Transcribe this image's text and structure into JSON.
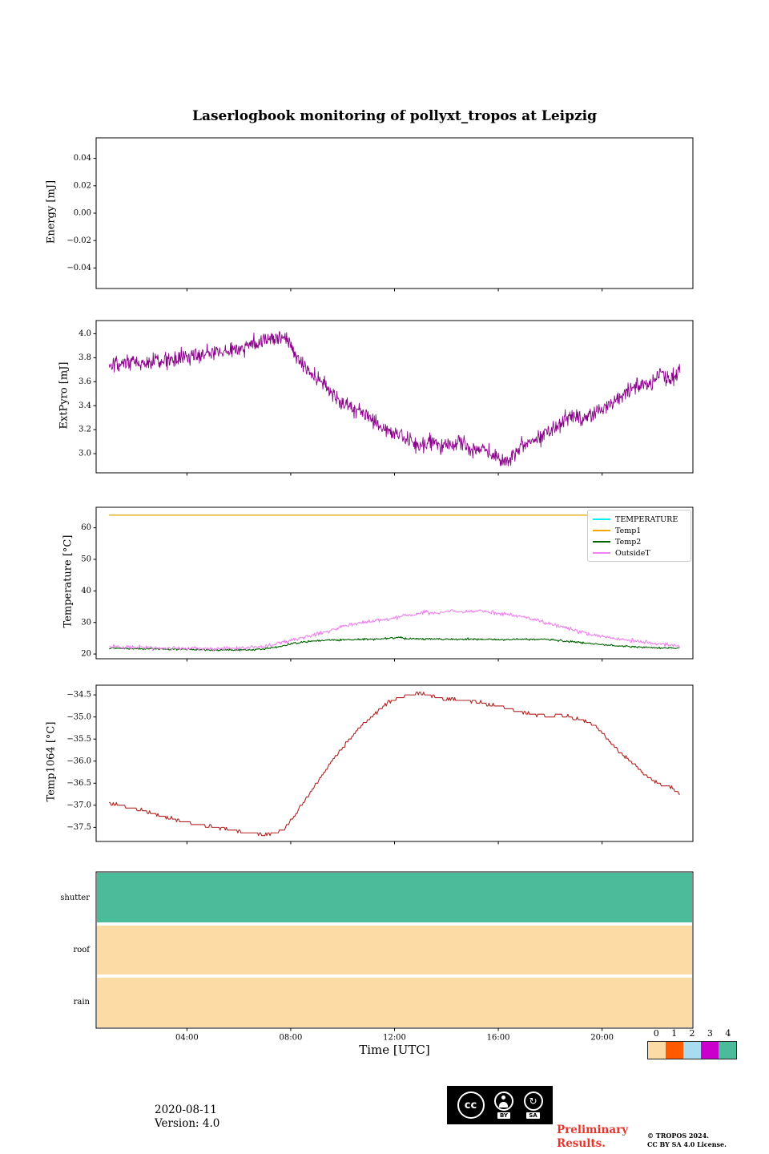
{
  "title": "Laserlogbook monitoring of pollyxt_tropos at Leipzig",
  "xlabel": "Time [UTC]",
  "footer": {
    "date": "2020-08-11",
    "version": "Version: 4.0",
    "preliminary_line1": "Preliminary",
    "preliminary_line2": "Results.",
    "copyright_line1": "© TROPOS 2024.",
    "copyright_line2": "CC BY SA 4.0 License.",
    "cc_text": "cc",
    "cc_label_by": "BY",
    "cc_label_sa": "SA",
    "cc_sa_glyph": "↻"
  },
  "colorbar": {
    "labels": [
      "0",
      "1",
      "2",
      "3",
      "4"
    ],
    "colors": [
      "#FCDCA4",
      "#FF5A00",
      "#A8DCF0",
      "#CC00CC",
      "#4CBB9A"
    ]
  },
  "chart_data": [
    {
      "id": "energy",
      "type": "line",
      "ylabel": "Energy [mJ]",
      "ylim": [
        -0.055,
        0.055
      ],
      "xlim": [
        0.5,
        23.5
      ],
      "yticks": [
        {
          "v": 0.04,
          "label": "0.04"
        },
        {
          "v": 0.02,
          "label": "0.02"
        },
        {
          "v": 0.0,
          "label": "0.00"
        },
        {
          "v": -0.02,
          "label": "−0.02"
        },
        {
          "v": -0.04,
          "label": "−0.04"
        }
      ],
      "xticks": [
        {
          "v": 4,
          "label": "04:00"
        },
        {
          "v": 8,
          "label": "08:00"
        },
        {
          "v": 12,
          "label": "12:00"
        },
        {
          "v": 16,
          "label": "16:00"
        },
        {
          "v": 20,
          "label": "20:00"
        }
      ],
      "show_xlabels": false,
      "series": []
    },
    {
      "id": "extpyro",
      "type": "line",
      "ylabel": "ExtPyro [mJ]",
      "ylim": [
        2.84,
        4.11
      ],
      "xlim": [
        0.5,
        23.5
      ],
      "yticks": [
        {
          "v": 4.0,
          "label": "4.0"
        },
        {
          "v": 3.8,
          "label": "3.8"
        },
        {
          "v": 3.6,
          "label": "3.6"
        },
        {
          "v": 3.4,
          "label": "3.4"
        },
        {
          "v": 3.2,
          "label": "3.2"
        },
        {
          "v": 3.0,
          "label": "3.0"
        }
      ],
      "xticks": [
        {
          "v": 4,
          "label": "04:00"
        },
        {
          "v": 8,
          "label": "08:00"
        },
        {
          "v": 12,
          "label": "12:00"
        },
        {
          "v": 16,
          "label": "16:00"
        },
        {
          "v": 20,
          "label": "20:00"
        }
      ],
      "show_xlabels": false,
      "series": [
        {
          "name": "ExtPyro",
          "color": "#8B008B",
          "width": 0.9,
          "noise": 0.07,
          "sample_step": 0.02,
          "anchors": [
            [
              1,
              3.72
            ],
            [
              1.5,
              3.74
            ],
            [
              2,
              3.76
            ],
            [
              2.5,
              3.75
            ],
            [
              3,
              3.78
            ],
            [
              3.5,
              3.78
            ],
            [
              4,
              3.81
            ],
            [
              4.5,
              3.82
            ],
            [
              5,
              3.84
            ],
            [
              5.5,
              3.86
            ],
            [
              6,
              3.87
            ],
            [
              6.3,
              3.9
            ],
            [
              6.7,
              3.93
            ],
            [
              7,
              3.95
            ],
            [
              7.3,
              3.96
            ],
            [
              7.6,
              3.97
            ],
            [
              7.9,
              3.93
            ],
            [
              8.2,
              3.82
            ],
            [
              8.6,
              3.72
            ],
            [
              9,
              3.62
            ],
            [
              9.5,
              3.53
            ],
            [
              10,
              3.42
            ],
            [
              10.5,
              3.37
            ],
            [
              11,
              3.3
            ],
            [
              11.5,
              3.22
            ],
            [
              12,
              3.17
            ],
            [
              12.5,
              3.1
            ],
            [
              13,
              3.06
            ],
            [
              13.5,
              3.1
            ],
            [
              14,
              3.07
            ],
            [
              14.5,
              3.09
            ],
            [
              15,
              3.04
            ],
            [
              15.5,
              3.03
            ],
            [
              16,
              2.97
            ],
            [
              16.3,
              2.93
            ],
            [
              16.6,
              3.02
            ],
            [
              17,
              3.08
            ],
            [
              17.5,
              3.12
            ],
            [
              18,
              3.2
            ],
            [
              18.5,
              3.28
            ],
            [
              19,
              3.33
            ],
            [
              19.3,
              3.28
            ],
            [
              19.6,
              3.32
            ],
            [
              20,
              3.38
            ],
            [
              20.5,
              3.45
            ],
            [
              21,
              3.52
            ],
            [
              21.5,
              3.58
            ],
            [
              22,
              3.6
            ],
            [
              22.3,
              3.68
            ],
            [
              22.6,
              3.62
            ],
            [
              23,
              3.68
            ]
          ]
        }
      ]
    },
    {
      "id": "temperature",
      "type": "line",
      "ylabel": "Temperature [°C]",
      "ylim": [
        18.5,
        66.5
      ],
      "xlim": [
        0.5,
        23.5
      ],
      "yticks": [
        {
          "v": 60,
          "label": "60"
        },
        {
          "v": 50,
          "label": "50"
        },
        {
          "v": 40,
          "label": "40"
        },
        {
          "v": 30,
          "label": "30"
        },
        {
          "v": 20,
          "label": "20"
        }
      ],
      "xticks": [
        {
          "v": 4,
          "label": "04:00"
        },
        {
          "v": 8,
          "label": "08:00"
        },
        {
          "v": 12,
          "label": "12:00"
        },
        {
          "v": 16,
          "label": "16:00"
        },
        {
          "v": 20,
          "label": "20:00"
        }
      ],
      "show_xlabels": false,
      "legend": [
        {
          "label": "TEMPERATURE",
          "color": "#00EEEE"
        },
        {
          "label": "Temp1",
          "color": "#FFA500"
        },
        {
          "label": "Temp2",
          "color": "#006400"
        },
        {
          "label": "OutsideT",
          "color": "#EE82EE"
        }
      ],
      "series": [
        {
          "name": "TEMPERATURE",
          "color": "#00EEEE",
          "width": 1.2,
          "sample_step": 2,
          "anchors": [
            [
              1,
              64
            ],
            [
              23,
              64
            ]
          ]
        },
        {
          "name": "Temp1",
          "color": "#FFA500",
          "width": 1.2,
          "sample_step": 2,
          "anchors": [
            [
              1,
              64
            ],
            [
              23,
              64
            ]
          ]
        },
        {
          "name": "Temp2",
          "color": "#006400",
          "width": 1.1,
          "noise": 0.3,
          "sample_step": 0.03,
          "anchors": [
            [
              1,
              21.8
            ],
            [
              3,
              21.6
            ],
            [
              5,
              21.3
            ],
            [
              6.5,
              21.3
            ],
            [
              7,
              21.6
            ],
            [
              7.5,
              22.3
            ],
            [
              8,
              23.2
            ],
            [
              8.5,
              23.8
            ],
            [
              9,
              24.2
            ],
            [
              9.5,
              24.4
            ],
            [
              10,
              24.5
            ],
            [
              10.5,
              24.6
            ],
            [
              11,
              24.7
            ],
            [
              11.5,
              24.8
            ],
            [
              12,
              25.0
            ],
            [
              12.2,
              25.4
            ],
            [
              12.4,
              24.9
            ],
            [
              13,
              24.8
            ],
            [
              14,
              24.7
            ],
            [
              15,
              24.7
            ],
            [
              16,
              24.6
            ],
            [
              17,
              24.6
            ],
            [
              17.5,
              24.7
            ],
            [
              18,
              24.5
            ],
            [
              18.5,
              24.2
            ],
            [
              19,
              23.8
            ],
            [
              19.5,
              23.3
            ],
            [
              20,
              23.0
            ],
            [
              20.5,
              22.7
            ],
            [
              21,
              22.4
            ],
            [
              21.5,
              22.2
            ],
            [
              22,
              22.0
            ],
            [
              22.5,
              21.9
            ],
            [
              23,
              21.8
            ]
          ]
        },
        {
          "name": "OutsideT",
          "color": "#EE82EE",
          "width": 1.1,
          "noise": 0.6,
          "sample_step": 0.03,
          "anchors": [
            [
              1,
              22.3
            ],
            [
              2,
              22.2
            ],
            [
              3,
              21.9
            ],
            [
              4,
              21.8
            ],
            [
              5,
              21.7
            ],
            [
              6,
              21.8
            ],
            [
              6.5,
              22.0
            ],
            [
              7,
              22.5
            ],
            [
              7.5,
              23.3
            ],
            [
              8,
              24.2
            ],
            [
              8.5,
              25.2
            ],
            [
              9,
              26.3
            ],
            [
              9.5,
              27.4
            ],
            [
              10,
              28.6
            ],
            [
              10.5,
              29.6
            ],
            [
              11,
              30.3
            ],
            [
              11.5,
              30.8
            ],
            [
              12,
              31.4
            ],
            [
              12.5,
              32.2
            ],
            [
              13,
              32.8
            ],
            [
              13.2,
              33.5
            ],
            [
              13.5,
              32.9
            ],
            [
              14,
              33.2
            ],
            [
              14.2,
              34.0
            ],
            [
              14.5,
              33.3
            ],
            [
              15,
              33.4
            ],
            [
              15.3,
              33.8
            ],
            [
              15.6,
              33.2
            ],
            [
              16,
              33.0
            ],
            [
              16.5,
              32.4
            ],
            [
              17,
              31.6
            ],
            [
              17.5,
              30.6
            ],
            [
              18,
              29.5
            ],
            [
              18.5,
              28.4
            ],
            [
              19,
              27.3
            ],
            [
              19.5,
              26.4
            ],
            [
              20,
              25.6
            ],
            [
              20.5,
              25.0
            ],
            [
              21,
              24.4
            ],
            [
              21.5,
              23.9
            ],
            [
              22,
              23.4
            ],
            [
              22.5,
              23.0
            ],
            [
              23,
              22.6
            ]
          ]
        }
      ]
    },
    {
      "id": "temp1064",
      "type": "line",
      "ylabel": "Temp1064 [°C]",
      "ylim": [
        -37.82,
        -34.28
      ],
      "xlim": [
        0.5,
        23.5
      ],
      "yticks": [
        {
          "v": -34.5,
          "label": "−34.5"
        },
        {
          "v": -35.0,
          "label": "−35.0"
        },
        {
          "v": -35.5,
          "label": "−35.5"
        },
        {
          "v": -36.0,
          "label": "−36.0"
        },
        {
          "v": -36.5,
          "label": "−36.5"
        },
        {
          "v": -37.0,
          "label": "−37.0"
        },
        {
          "v": -37.5,
          "label": "−37.5"
        }
      ],
      "xticks": [
        {
          "v": 4,
          "label": "04:00"
        },
        {
          "v": 8,
          "label": "08:00"
        },
        {
          "v": 12,
          "label": "12:00"
        },
        {
          "v": 16,
          "label": "16:00"
        },
        {
          "v": 20,
          "label": "20:00"
        }
      ],
      "show_xlabels": false,
      "series": [
        {
          "name": "Temp1064",
          "color": "#B22222",
          "width": 1.1,
          "noise": 0.03,
          "quantize": 0.0625,
          "sample_step": 0.04,
          "anchors": [
            [
              1,
              -36.95
            ],
            [
              1.5,
              -37.0
            ],
            [
              2,
              -37.1
            ],
            [
              2.5,
              -37.15
            ],
            [
              3,
              -37.25
            ],
            [
              3.5,
              -37.3
            ],
            [
              4,
              -37.4
            ],
            [
              4.5,
              -37.45
            ],
            [
              5,
              -37.5
            ],
            [
              5.5,
              -37.55
            ],
            [
              6,
              -37.6
            ],
            [
              6.5,
              -37.65
            ],
            [
              7,
              -37.65
            ],
            [
              7.4,
              -37.65
            ],
            [
              7.7,
              -37.55
            ],
            [
              8,
              -37.35
            ],
            [
              8.3,
              -37.1
            ],
            [
              8.6,
              -36.85
            ],
            [
              9,
              -36.5
            ],
            [
              9.4,
              -36.15
            ],
            [
              9.8,
              -35.85
            ],
            [
              10.2,
              -35.55
            ],
            [
              10.6,
              -35.3
            ],
            [
              11,
              -35.05
            ],
            [
              11.4,
              -34.85
            ],
            [
              11.8,
              -34.65
            ],
            [
              12.2,
              -34.55
            ],
            [
              12.6,
              -34.5
            ],
            [
              13,
              -34.45
            ],
            [
              13.3,
              -34.5
            ],
            [
              13.6,
              -34.55
            ],
            [
              14,
              -34.6
            ],
            [
              14.5,
              -34.6
            ],
            [
              15,
              -34.65
            ],
            [
              15.5,
              -34.7
            ],
            [
              16,
              -34.75
            ],
            [
              16.5,
              -34.85
            ],
            [
              17,
              -34.9
            ],
            [
              17.5,
              -34.95
            ],
            [
              18,
              -35.0
            ],
            [
              18.3,
              -34.95
            ],
            [
              18.7,
              -35.0
            ],
            [
              19,
              -35.05
            ],
            [
              19.3,
              -35.1
            ],
            [
              19.6,
              -35.15
            ],
            [
              20,
              -35.35
            ],
            [
              20.3,
              -35.55
            ],
            [
              20.6,
              -35.75
            ],
            [
              21,
              -35.95
            ],
            [
              21.3,
              -36.1
            ],
            [
              21.6,
              -36.3
            ],
            [
              22,
              -36.45
            ],
            [
              22.3,
              -36.55
            ],
            [
              22.7,
              -36.6
            ],
            [
              23,
              -36.75
            ]
          ]
        }
      ]
    },
    {
      "id": "status",
      "type": "bands",
      "xlim": [
        0.5,
        23.5
      ],
      "categories": [
        {
          "label": "shutter",
          "color": "#4CBB9A"
        },
        {
          "label": "roof",
          "color": "#FCDCA4"
        },
        {
          "label": "rain",
          "color": "#FCDCA4"
        }
      ],
      "xticks": [
        {
          "v": 4,
          "label": "04:00"
        },
        {
          "v": 8,
          "label": "08:00"
        },
        {
          "v": 12,
          "label": "12:00"
        },
        {
          "v": 16,
          "label": "16:00"
        },
        {
          "v": 20,
          "label": "20:00"
        }
      ],
      "show_xlabels": true,
      "series": []
    }
  ]
}
